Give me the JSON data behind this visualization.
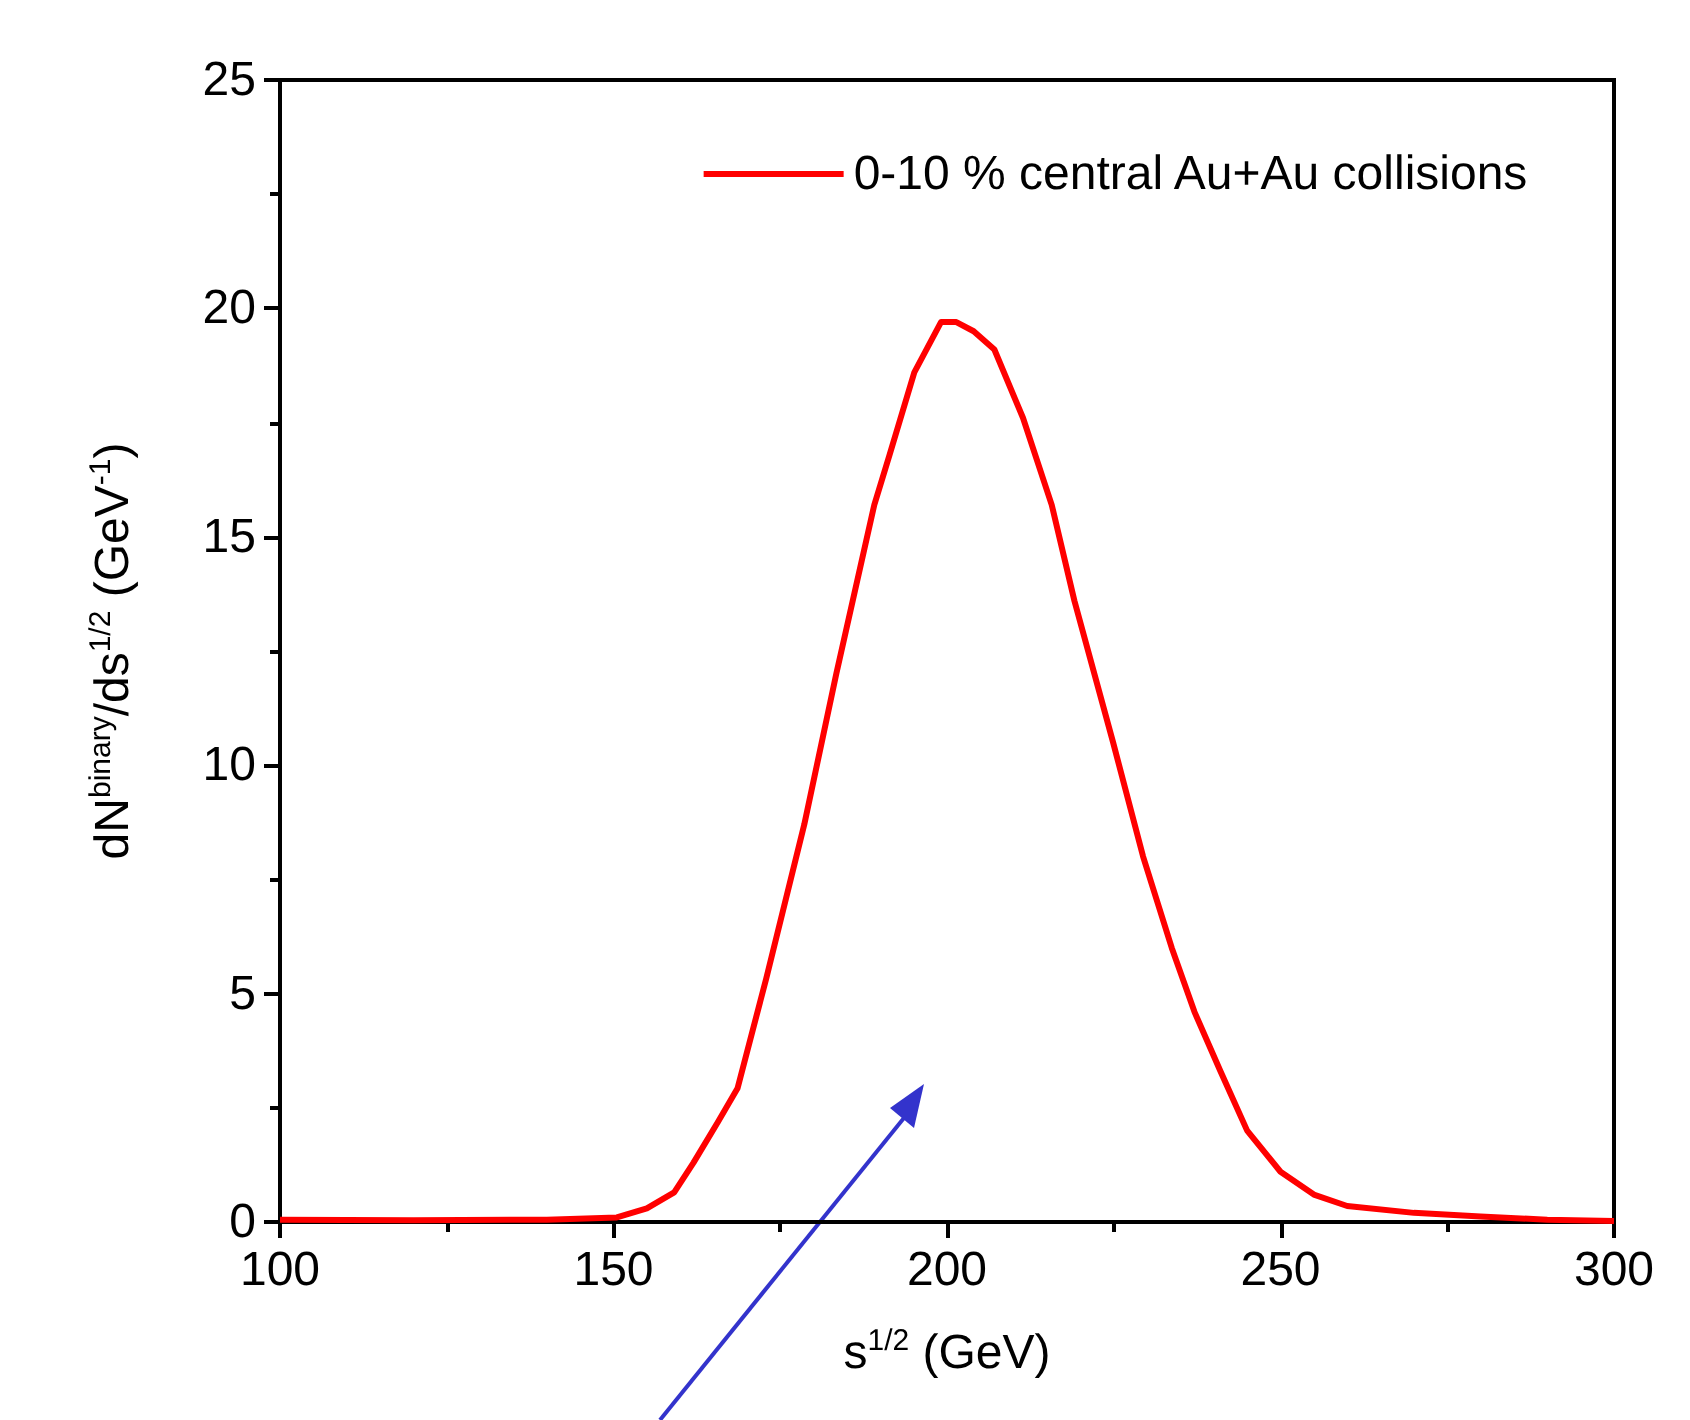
{
  "chart_data": {
    "type": "line",
    "xlabel": "s$^{1/2}$ (GeV)",
    "ylabel": "dN$^{binary}$/ds$^{1/2}$ (GeV$^{-1}$)",
    "xlim": [
      100,
      300
    ],
    "xticks": [
      100,
      150,
      200,
      250,
      300
    ],
    "ylim": [
      0,
      25
    ],
    "yticks": [
      0,
      5,
      10,
      15,
      20,
      25
    ],
    "grid": false,
    "legend": "top right",
    "marker": "none",
    "line_style": "solid",
    "series": [
      {
        "name": "0-10 % central Au+Au collisions",
        "color": "#ff0000",
        "x": [
          100,
          120,
          140,
          150.5,
          155,
          159.1,
          162,
          165.7,
          168.6,
          172.9,
          178.6,
          183.4,
          189.1,
          191.4,
          195.1,
          199.1,
          201.4,
          204,
          207.1,
          211.4,
          215.7,
          219.1,
          224.9,
          229.4,
          233.7,
          237.1,
          241,
          245,
          250,
          255,
          260,
          270,
          280,
          290,
          300
        ],
        "values": [
          0.05,
          0.04,
          0.05,
          0.1,
          0.3,
          0.65,
          1.3,
          2.2,
          2.93,
          5.33,
          8.7,
          12.0,
          15.7,
          16.8,
          18.6,
          19.7,
          19.7,
          19.5,
          19.1,
          17.6,
          15.7,
          13.6,
          10.5,
          8.0,
          6.0,
          4.6,
          3.3,
          2.0,
          1.1,
          0.6,
          0.35,
          0.2,
          0.12,
          0.05,
          0.02
        ]
      }
    ]
  }
}
